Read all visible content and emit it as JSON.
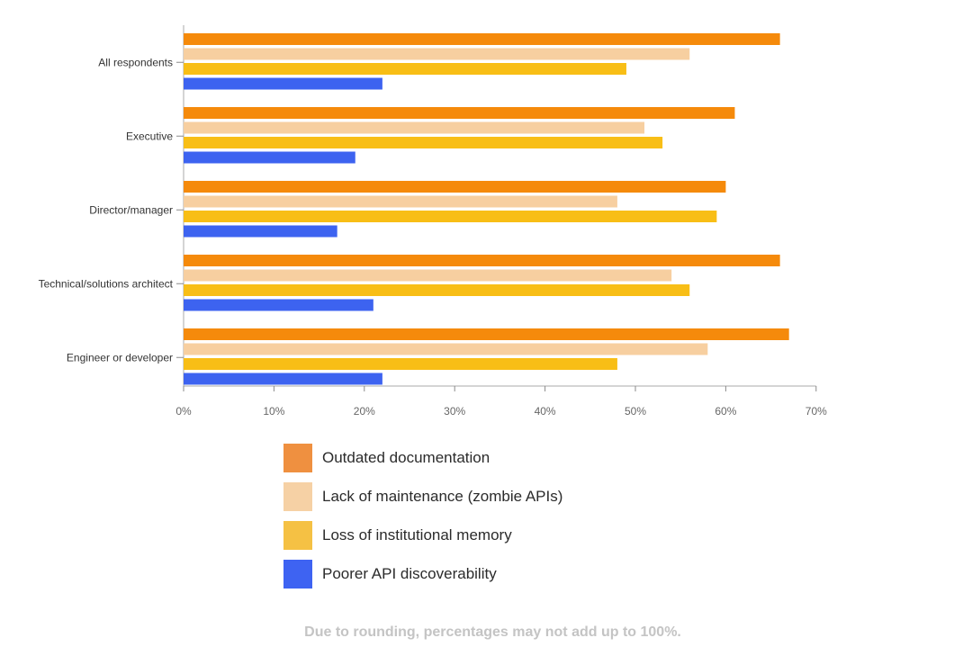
{
  "chart_data": {
    "type": "bar",
    "orientation": "horizontal",
    "categories": [
      "All respondents",
      "Executive",
      "Director/manager",
      "Technical/solutions architect",
      "Engineer or developer"
    ],
    "series": [
      {
        "name": "Outdated documentation",
        "color": "#f58a0b",
        "values": [
          66,
          61,
          60,
          66,
          67
        ]
      },
      {
        "name": "Lack of maintenance (zombie APIs)",
        "color": "#f7cfa0",
        "values": [
          56,
          51,
          48,
          54,
          58
        ]
      },
      {
        "name": "Loss of institutional memory",
        "color": "#f8be16",
        "values": [
          49,
          53,
          59,
          56,
          48
        ]
      },
      {
        "name": "Poorer API discoverability",
        "color": "#3d63f0",
        "values": [
          22,
          19,
          17,
          21,
          22
        ]
      }
    ],
    "x_ticks": [
      "0%",
      "10%",
      "20%",
      "30%",
      "40%",
      "50%",
      "60%",
      "70%"
    ],
    "xlim": [
      0,
      70
    ],
    "grid": false,
    "legend_position": "bottom"
  },
  "legend": [
    {
      "label": "Outdated documentation",
      "color": "#ef9040"
    },
    {
      "label": "Lack of maintenance (zombie APIs)",
      "color": "#f6d1a5"
    },
    {
      "label": "Loss of institutional memory",
      "color": "#f5c144"
    },
    {
      "label": "Poorer API discoverability",
      "color": "#3e63f2"
    }
  ],
  "footnote": "Due to rounding, percentages may not add up to 100%."
}
